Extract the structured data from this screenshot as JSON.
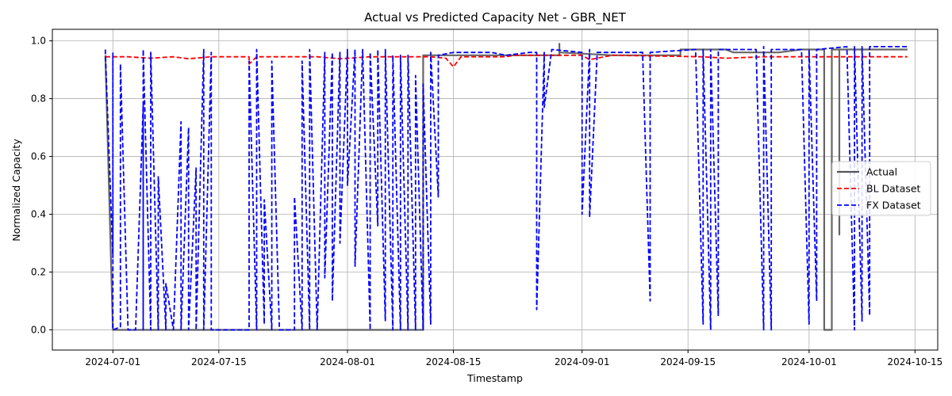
{
  "chart_data": {
    "type": "line",
    "title": "Actual vs Predicted Capacity Net - GBR_NET",
    "xlabel": "Timestamp",
    "ylabel": "Normalized Capacity",
    "x_axis_type": "date",
    "xlim": [
      "2024-06-23",
      "2024-10-18"
    ],
    "ylim": [
      -0.07,
      1.04
    ],
    "x_ticks": [
      "2024-07-01",
      "2024-07-15",
      "2024-08-01",
      "2024-08-15",
      "2024-09-01",
      "2024-09-15",
      "2024-10-01",
      "2024-10-15"
    ],
    "y_ticks": [
      "0.0",
      "0.2",
      "0.4",
      "0.6",
      "0.8",
      "1.0"
    ],
    "grid": true,
    "legend_position": "center-right",
    "series": [
      {
        "name": "Actual",
        "color": "#555555",
        "style": "solid",
        "points": [
          [
            "2024-06-30",
            0.95
          ],
          [
            "2024-07-01",
            0.0
          ],
          [
            "2024-07-15",
            0.0
          ],
          [
            "2024-08-01",
            0.0
          ],
          [
            "2024-08-11",
            0.0
          ],
          [
            "2024-08-11",
            0.95
          ],
          [
            "2024-08-12",
            0.95
          ],
          [
            "2024-08-25",
            0.95
          ],
          [
            "2024-08-29",
            0.95
          ],
          [
            "2024-08-29",
            0.99
          ],
          [
            "2024-08-29",
            0.96
          ],
          [
            "2024-09-05",
            0.95
          ],
          [
            "2024-09-14",
            0.95
          ],
          [
            "2024-09-14",
            0.97
          ],
          [
            "2024-09-20",
            0.97
          ],
          [
            "2024-09-21",
            0.96
          ],
          [
            "2024-09-27",
            0.96
          ],
          [
            "2024-09-30",
            0.97
          ],
          [
            "2024-10-03",
            0.97
          ],
          [
            "2024-10-03",
            0.0
          ],
          [
            "2024-10-04",
            0.0
          ],
          [
            "2024-10-04",
            0.65
          ],
          [
            "2024-10-04",
            0.0
          ],
          [
            "2024-10-04",
            0.97
          ],
          [
            "2024-10-05",
            0.97
          ],
          [
            "2024-10-05",
            0.33
          ],
          [
            "2024-10-05",
            0.97
          ],
          [
            "2024-10-14",
            0.97
          ]
        ]
      },
      {
        "name": "BL Dataset",
        "color": "#ff0000",
        "style": "dashed",
        "points": [
          [
            "2024-06-30",
            0.945
          ],
          [
            "2024-07-03",
            0.945
          ],
          [
            "2024-07-06",
            0.94
          ],
          [
            "2024-07-09",
            0.945
          ],
          [
            "2024-07-11",
            0.938
          ],
          [
            "2024-07-14",
            0.945
          ],
          [
            "2024-07-19",
            0.945
          ],
          [
            "2024-07-19",
            0.92
          ],
          [
            "2024-07-20",
            0.945
          ],
          [
            "2024-07-28",
            0.945
          ],
          [
            "2024-07-31",
            0.938
          ],
          [
            "2024-08-04",
            0.945
          ],
          [
            "2024-08-12",
            0.945
          ],
          [
            "2024-08-14",
            0.94
          ],
          [
            "2024-08-15",
            0.91
          ],
          [
            "2024-08-16",
            0.945
          ],
          [
            "2024-08-22",
            0.945
          ],
          [
            "2024-08-23",
            0.95
          ],
          [
            "2024-09-01",
            0.95
          ],
          [
            "2024-09-02",
            0.935
          ],
          [
            "2024-09-05",
            0.95
          ],
          [
            "2024-09-17",
            0.945
          ],
          [
            "2024-09-20",
            0.94
          ],
          [
            "2024-09-25",
            0.945
          ],
          [
            "2024-10-01",
            0.945
          ],
          [
            "2024-10-07",
            0.945
          ],
          [
            "2024-10-14",
            0.945
          ]
        ]
      },
      {
        "name": "FX Dataset",
        "color": "#0000ff",
        "style": "dashed",
        "points": [
          [
            "2024-06-30",
            0.97
          ],
          [
            "2024-06-30",
            0.96
          ],
          [
            "2024-07-01",
            0.25
          ],
          [
            "2024-07-01",
            0.96
          ],
          [
            "2024-07-01",
            0.0
          ],
          [
            "2024-07-02",
            0.01
          ],
          [
            "2024-07-02",
            0.92
          ],
          [
            "2024-07-03",
            0.0
          ],
          [
            "2024-07-04",
            0.0
          ],
          [
            "2024-07-05",
            0.78
          ],
          [
            "2024-07-05",
            0.0
          ],
          [
            "2024-07-05",
            0.97
          ],
          [
            "2024-07-06",
            0.0
          ],
          [
            "2024-07-06",
            0.96
          ],
          [
            "2024-07-07",
            0.0
          ],
          [
            "2024-07-07",
            0.53
          ],
          [
            "2024-07-08",
            0.0
          ],
          [
            "2024-07-08",
            0.16
          ],
          [
            "2024-07-09",
            0.0
          ],
          [
            "2024-07-10",
            0.72
          ],
          [
            "2024-07-10",
            0.0
          ],
          [
            "2024-07-11",
            0.7
          ],
          [
            "2024-07-11",
            0.0
          ],
          [
            "2024-07-12",
            0.56
          ],
          [
            "2024-07-12",
            0.0
          ],
          [
            "2024-07-13",
            0.97
          ],
          [
            "2024-07-13",
            0.0
          ],
          [
            "2024-07-14",
            0.96
          ],
          [
            "2024-07-14",
            0.0
          ],
          [
            "2024-07-15",
            0.0
          ],
          [
            "2024-07-19",
            0.0
          ],
          [
            "2024-07-19",
            0.93
          ],
          [
            "2024-07-20",
            0.0
          ],
          [
            "2024-07-20",
            0.97
          ],
          [
            "2024-07-21",
            0.02
          ],
          [
            "2024-07-21",
            0.45
          ],
          [
            "2024-07-22",
            0.0
          ],
          [
            "2024-07-22",
            0.93
          ],
          [
            "2024-07-23",
            0.0
          ],
          [
            "2024-07-25",
            0.0
          ],
          [
            "2024-07-25",
            0.46
          ],
          [
            "2024-07-26",
            0.0
          ],
          [
            "2024-07-26",
            0.93
          ],
          [
            "2024-07-27",
            0.0
          ],
          [
            "2024-07-27",
            0.97
          ],
          [
            "2024-07-28",
            0.0
          ],
          [
            "2024-07-29",
            0.96
          ],
          [
            "2024-07-29",
            0.18
          ],
          [
            "2024-07-30",
            0.96
          ],
          [
            "2024-07-30",
            0.1
          ],
          [
            "2024-07-31",
            0.96
          ],
          [
            "2024-07-31",
            0.3
          ],
          [
            "2024-08-01",
            0.97
          ],
          [
            "2024-08-01",
            0.5
          ],
          [
            "2024-08-02",
            0.97
          ],
          [
            "2024-08-02",
            0.22
          ],
          [
            "2024-08-03",
            0.97
          ],
          [
            "2024-08-04",
            0.0
          ],
          [
            "2024-08-04",
            0.96
          ],
          [
            "2024-08-05",
            0.36
          ],
          [
            "2024-08-05",
            0.97
          ],
          [
            "2024-08-06",
            0.03
          ],
          [
            "2024-08-06",
            0.97
          ],
          [
            "2024-08-07",
            0.0
          ],
          [
            "2024-08-07",
            0.95
          ],
          [
            "2024-08-08",
            0.0
          ],
          [
            "2024-08-08",
            0.95
          ],
          [
            "2024-08-09",
            0.0
          ],
          [
            "2024-08-09",
            0.95
          ],
          [
            "2024-08-10",
            0.0
          ],
          [
            "2024-08-10",
            0.88
          ],
          [
            "2024-08-11",
            0.0
          ],
          [
            "2024-08-11",
            0.85
          ],
          [
            "2024-08-12",
            0.02
          ],
          [
            "2024-08-12",
            0.96
          ],
          [
            "2024-08-13",
            0.46
          ],
          [
            "2024-08-13",
            0.95
          ],
          [
            "2024-08-15",
            0.96
          ],
          [
            "2024-08-20",
            0.96
          ],
          [
            "2024-08-22",
            0.95
          ],
          [
            "2024-08-25",
            0.96
          ],
          [
            "2024-08-26",
            0.96
          ],
          [
            "2024-08-26",
            0.07
          ],
          [
            "2024-08-27",
            0.96
          ],
          [
            "2024-08-27",
            0.77
          ],
          [
            "2024-08-28",
            0.97
          ],
          [
            "2024-09-01",
            0.96
          ],
          [
            "2024-09-01",
            0.4
          ],
          [
            "2024-09-02",
            0.97
          ],
          [
            "2024-09-02",
            0.39
          ],
          [
            "2024-09-03",
            0.96
          ],
          [
            "2024-09-09",
            0.96
          ],
          [
            "2024-09-10",
            0.1
          ],
          [
            "2024-09-10",
            0.96
          ],
          [
            "2024-09-16",
            0.97
          ],
          [
            "2024-09-17",
            0.02
          ],
          [
            "2024-09-17",
            0.97
          ],
          [
            "2024-09-18",
            0.0
          ],
          [
            "2024-09-18",
            0.97
          ],
          [
            "2024-09-19",
            0.05
          ],
          [
            "2024-09-19",
            0.97
          ],
          [
            "2024-09-24",
            0.97
          ],
          [
            "2024-09-25",
            0.0
          ],
          [
            "2024-09-25",
            0.98
          ],
          [
            "2024-09-26",
            0.0
          ],
          [
            "2024-09-26",
            0.97
          ],
          [
            "2024-09-30",
            0.97
          ],
          [
            "2024-10-01",
            0.02
          ],
          [
            "2024-10-01",
            0.97
          ],
          [
            "2024-10-02",
            0.1
          ],
          [
            "2024-10-02",
            0.97
          ],
          [
            "2024-10-06",
            0.98
          ],
          [
            "2024-10-07",
            0.0
          ],
          [
            "2024-10-07",
            0.98
          ],
          [
            "2024-10-08",
            0.03
          ],
          [
            "2024-10-08",
            0.98
          ],
          [
            "2024-10-09",
            0.05
          ],
          [
            "2024-10-09",
            0.98
          ],
          [
            "2024-10-14",
            0.98
          ]
        ]
      }
    ]
  }
}
